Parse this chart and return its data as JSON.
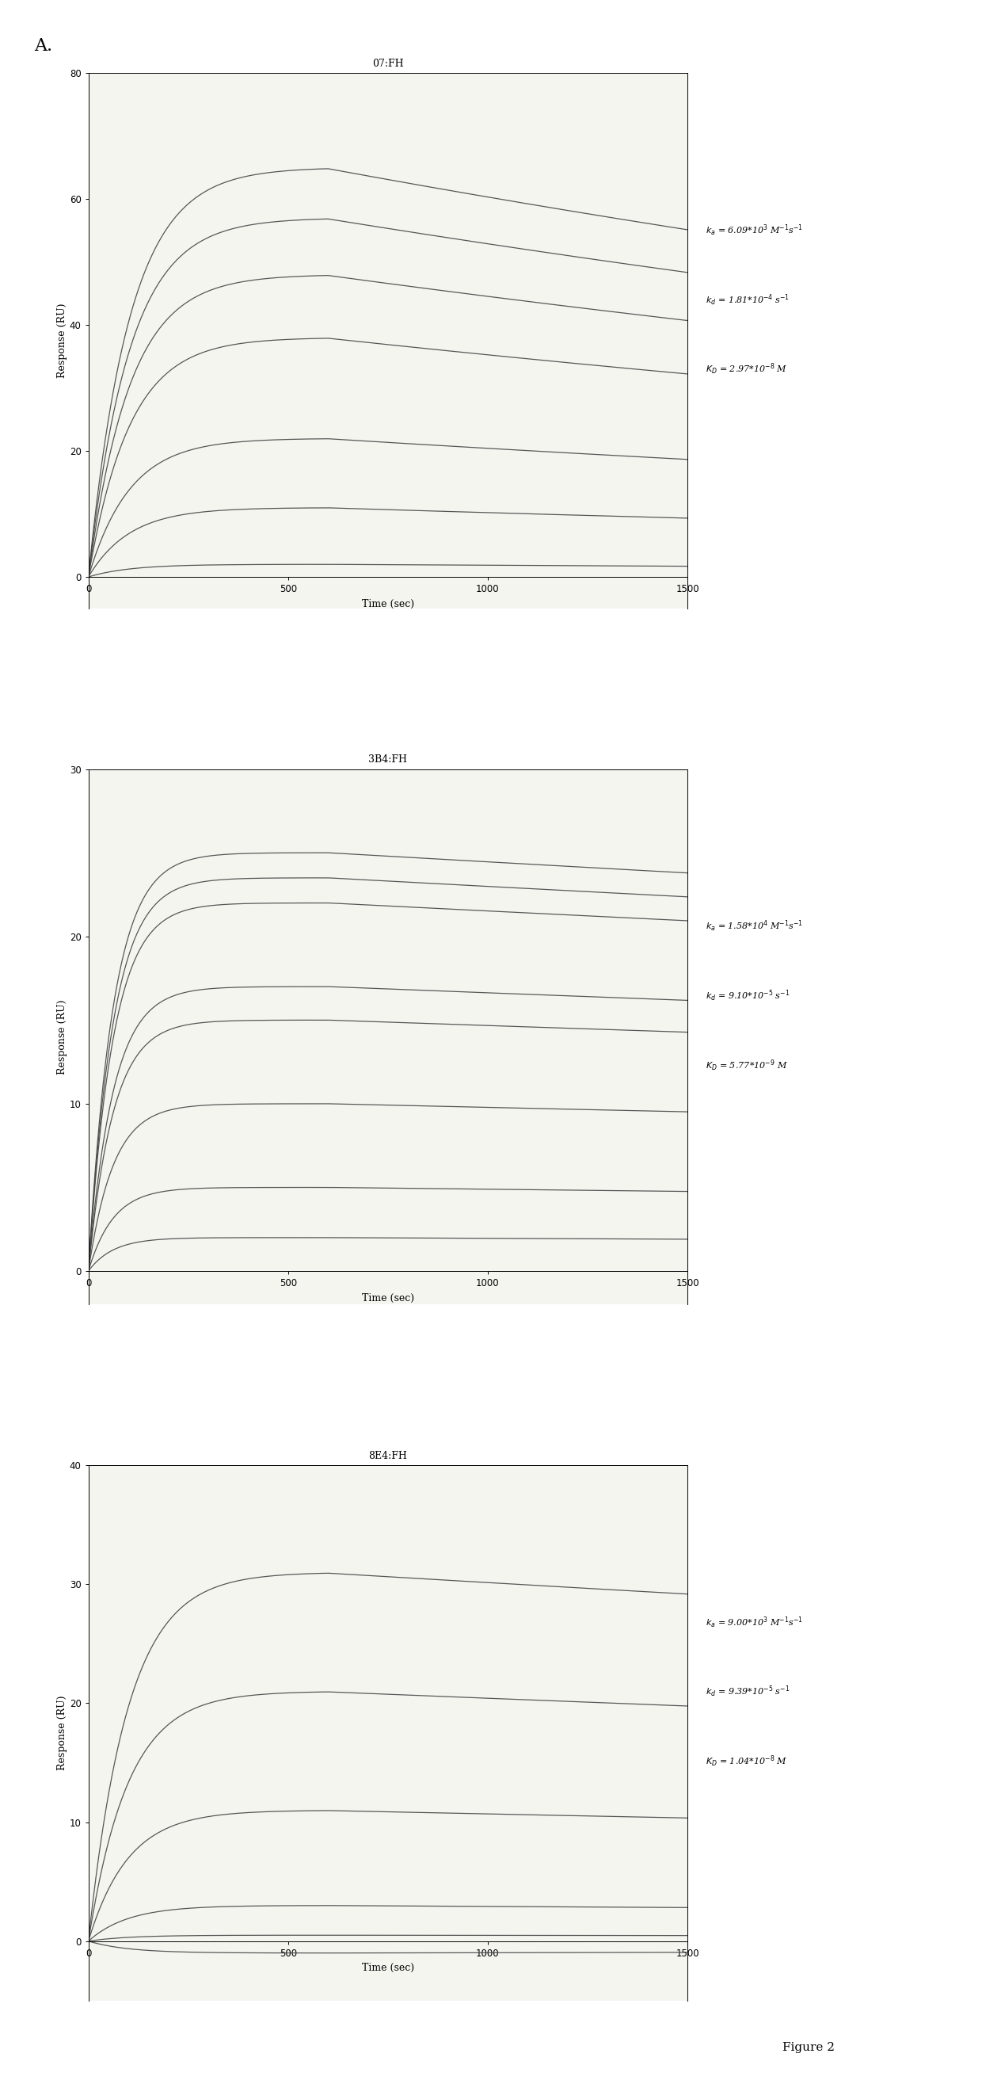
{
  "panels": [
    {
      "title": "07:FH",
      "ylim": [
        -5,
        80
      ],
      "yticks": [
        0,
        20,
        40,
        60,
        80
      ],
      "ylabel": "Response (RU)",
      "xlabel": "Time (sec)",
      "ka_text": "$k_a$ = 6.09*10$^3$ M$^{-1}$s$^{-1}$",
      "kd_text": "$k_d$ = 1.81*10$^{-4}$ s$^{-1}$",
      "kD_text": "$K_D$ = 2.97*10$^{-8}$ M",
      "n_curves": 7,
      "Rmax_values": [
        65,
        57,
        48,
        38,
        22,
        11,
        2
      ],
      "peak_time": 600,
      "ka": 0.0095,
      "kd": 0.00018
    },
    {
      "title": "3B4:FH",
      "ylim": [
        -2,
        30
      ],
      "yticks": [
        0,
        10,
        20,
        30
      ],
      "ylabel": "Response (RU)",
      "xlabel": "Time (sec)",
      "ka_text": "$k_a$ = 1.58*10$^4$ M$^{-1}$s$^{-1}$",
      "kd_text": "$k_d$ = 9.10*10$^{-5}$ s$^{-1}$",
      "kD_text": "$K_D$ = 5.77*10$^{-9}$ M",
      "n_curves": 8,
      "Rmax_values": [
        25,
        23.5,
        22,
        17,
        15,
        10,
        5,
        2
      ],
      "peak_time": 600,
      "ka": 0.016,
      "kd": 5.5e-05
    },
    {
      "title": "8E4:FH",
      "ylim": [
        -5,
        40
      ],
      "yticks": [
        0,
        10,
        20,
        30,
        40
      ],
      "ylabel": "Response (RU)",
      "xlabel": "Time (sec)",
      "ka_text": "$k_a$ = 9.00*10$^3$ M$^{-1}$s$^{-1}$",
      "kd_text": "$k_d$ = 9.39*10$^{-5}$ s$^{-1}$",
      "kD_text": "$K_D$ = 1.04*10$^{-8}$ M",
      "n_curves": 6,
      "Rmax_values": [
        31,
        21,
        11,
        3,
        0.5,
        -1
      ],
      "peak_time": 600,
      "ka": 0.01,
      "kd": 6.5e-05
    }
  ],
  "fig_label": "A.",
  "fig_caption": "Figure 2",
  "background_color": "#f5f5f0",
  "line_color": "#444444",
  "font_size": 9,
  "title_font_size": 9
}
